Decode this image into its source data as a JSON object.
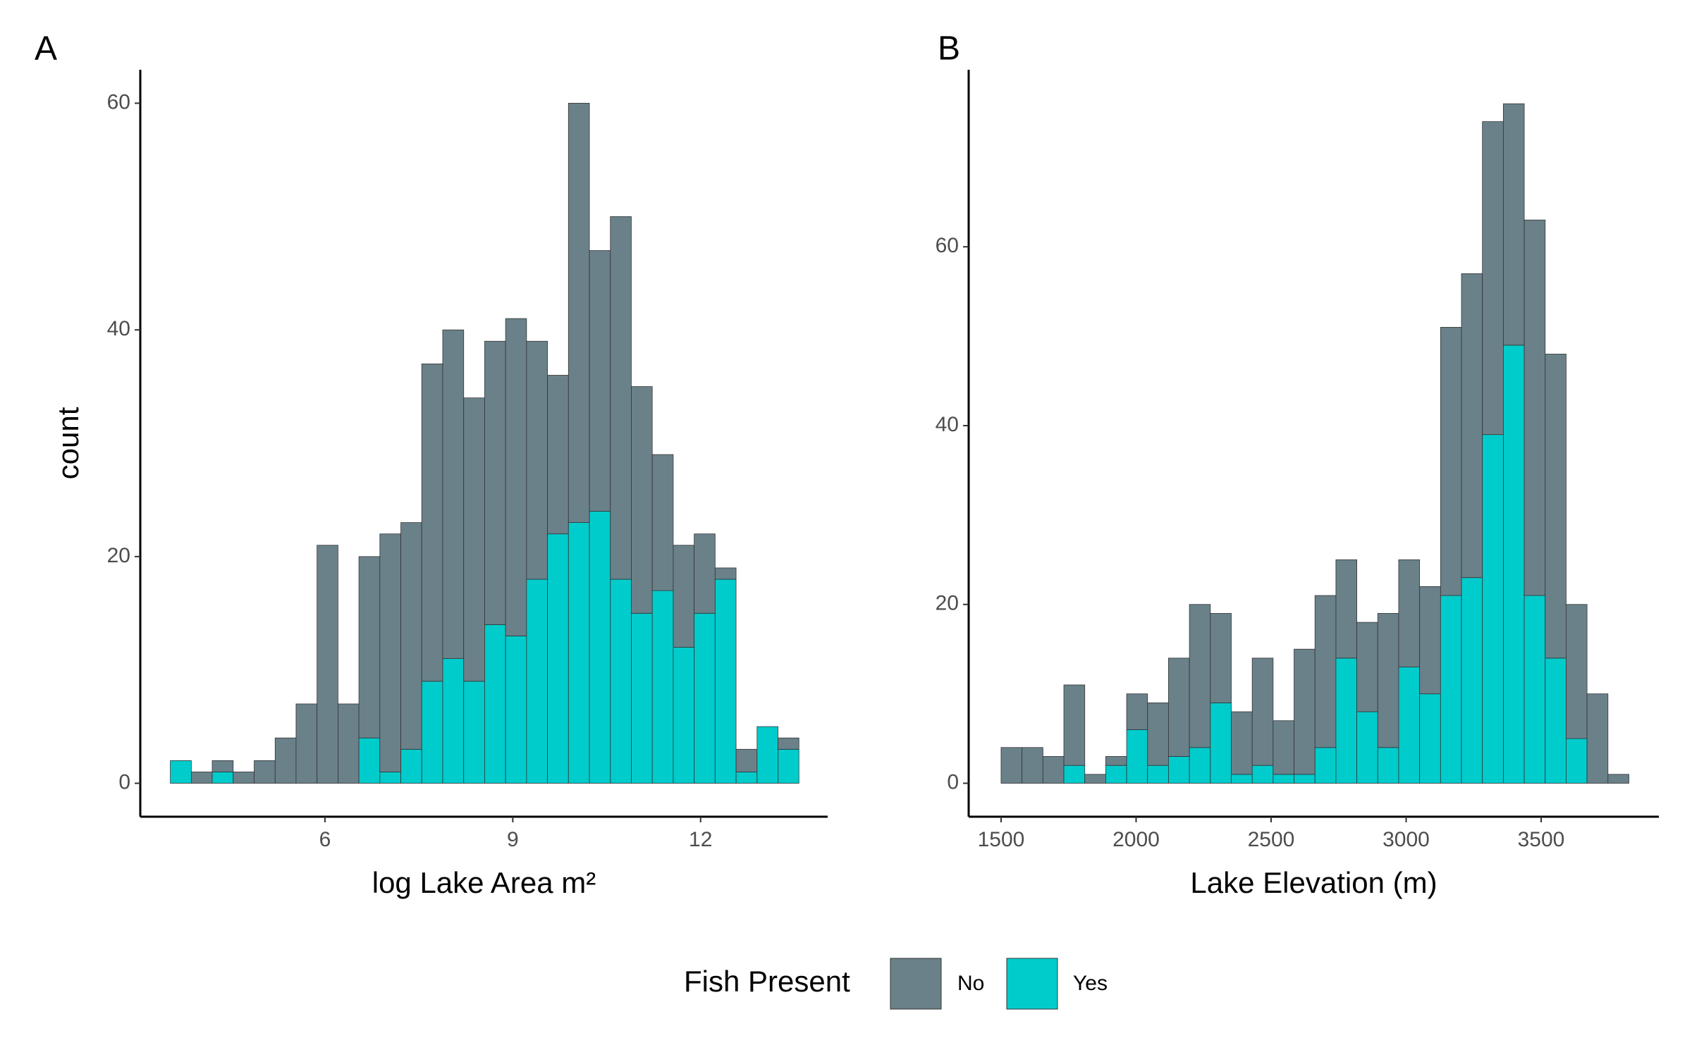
{
  "chart_data": [
    {
      "type": "histogram",
      "label": "A",
      "xlabel": "log Lake Area m²",
      "ylabel": "count",
      "legend_title": "Fish Present",
      "bins": [
        3.53,
        3.865,
        4.199,
        4.534,
        4.869,
        5.204,
        5.538,
        5.873,
        6.208,
        6.542,
        6.877,
        7.212,
        7.546,
        7.881,
        8.216,
        8.551,
        8.885,
        9.22,
        9.555,
        9.889,
        10.224,
        10.559,
        10.893,
        11.228,
        11.563,
        11.898,
        12.232,
        12.567,
        12.902,
        13.236,
        13.571
      ],
      "series": [
        {
          "name": "No",
          "color": "#6a818a",
          "values": [
            0,
            1,
            1,
            1,
            2,
            4,
            7,
            21,
            7,
            16,
            21,
            20,
            28,
            29,
            25,
            25,
            28,
            21,
            14,
            37,
            23,
            32,
            20,
            12,
            9,
            7,
            1,
            2,
            0,
            1
          ]
        },
        {
          "name": "Yes",
          "color": "#00cccc",
          "values": [
            2,
            0,
            1,
            0,
            0,
            0,
            0,
            0,
            0,
            4,
            1,
            3,
            9,
            11,
            9,
            14,
            13,
            18,
            22,
            23,
            24,
            18,
            15,
            17,
            12,
            15,
            18,
            1,
            5,
            3
          ]
        }
      ],
      "xlim": [
        3.05,
        14.03
      ],
      "ylim": [
        -2.95,
        62.95
      ],
      "xticks": [
        6,
        9,
        12
      ],
      "yticks": [
        0,
        20,
        40,
        60
      ]
    },
    {
      "type": "histogram",
      "label": "B",
      "xlabel": "Lake Elevation (m)",
      "bins": [
        1500,
        1577.5,
        1655,
        1732.5,
        1810,
        1887.5,
        1965,
        2042.5,
        2120,
        2197.5,
        2275,
        2352.5,
        2430,
        2507.5,
        2585,
        2662.5,
        2740,
        2817.5,
        2895,
        2972.5,
        3050,
        3127.5,
        3205,
        3282.5,
        3360,
        3437.5,
        3515,
        3592.5,
        3670,
        3747.5,
        3825
      ],
      "series": [
        {
          "name": "No",
          "color": "#6a818a",
          "values": [
            4,
            4,
            3,
            9,
            1,
            1,
            4,
            7,
            11,
            16,
            10,
            7,
            12,
            6,
            14,
            17,
            11,
            10,
            15,
            12,
            12,
            30,
            34,
            35,
            27,
            42,
            34,
            15,
            10,
            1
          ]
        },
        {
          "name": "Yes",
          "color": "#00cccc",
          "values": [
            0,
            0,
            0,
            2,
            0,
            2,
            6,
            2,
            3,
            4,
            9,
            1,
            2,
            1,
            1,
            4,
            14,
            8,
            4,
            13,
            10,
            21,
            23,
            39,
            49,
            21,
            14,
            5,
            0,
            0
          ]
        }
      ],
      "xlim": [
        1380,
        3936
      ],
      "ylim": [
        -3.74,
        79.8
      ],
      "xticks": [
        1500,
        2000,
        2500,
        3000,
        3500
      ],
      "yticks": [
        0,
        20,
        40,
        60
      ]
    }
  ]
}
